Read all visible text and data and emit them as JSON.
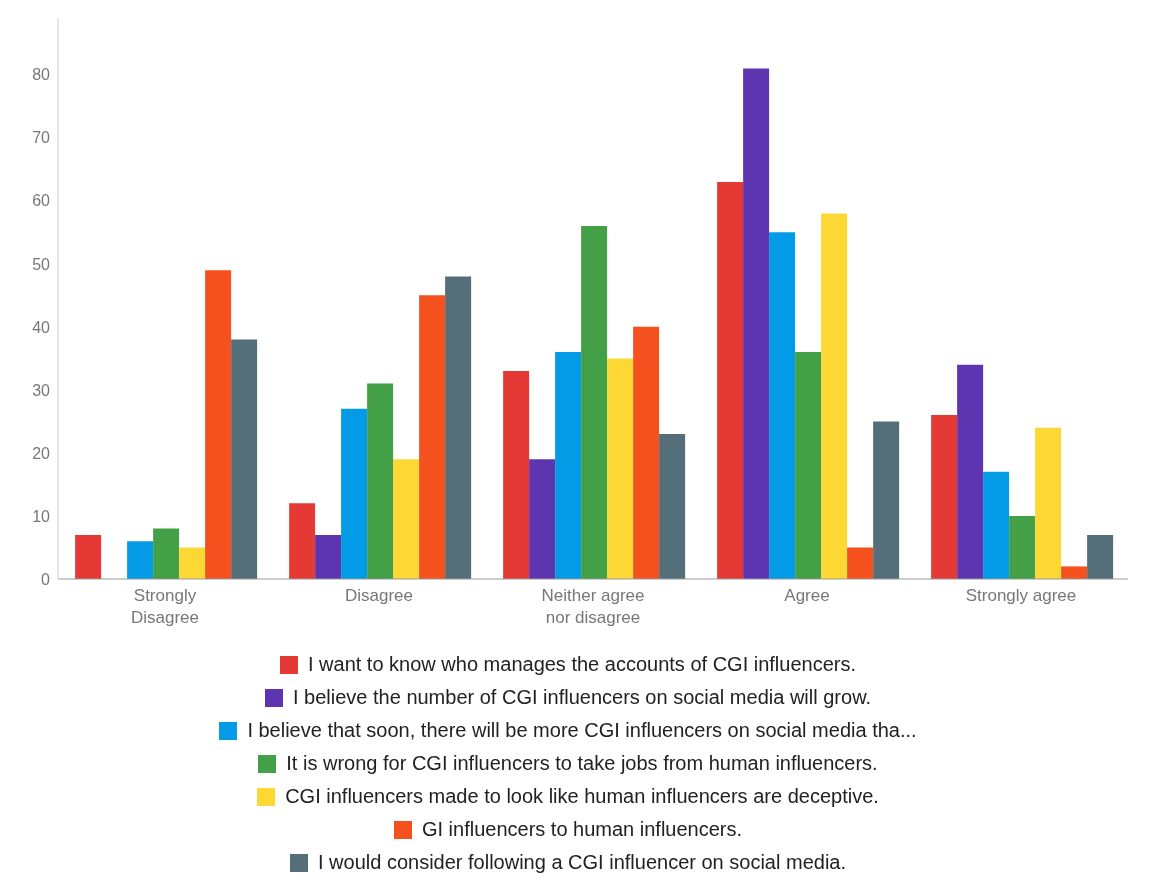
{
  "chart_data": {
    "type": "bar",
    "categories": [
      "Strongly Disagree",
      "Disagree",
      "Neither agree nor disagree",
      "Agree",
      "Strongly agree"
    ],
    "series": [
      {
        "name": "I want to know who manages the accounts of CGI influencers.",
        "color": "#e53935",
        "values": [
          7,
          12,
          33,
          63,
          26
        ]
      },
      {
        "name": "I believe the number of CGI influencers on social media will grow.",
        "color": "#5e35b1",
        "values": [
          0,
          7,
          19,
          81,
          34
        ]
      },
      {
        "name": "I believe that soon, there will be more CGI influencers on social media tha...",
        "color": "#039be5",
        "values": [
          6,
          27,
          36,
          55,
          17
        ]
      },
      {
        "name": "It is wrong for CGI influencers to take jobs from human influencers.",
        "color": "#43a047",
        "values": [
          8,
          31,
          56,
          36,
          10
        ]
      },
      {
        "name": "CGI influencers made to look like human influencers are deceptive.",
        "color": "#fdd835",
        "values": [
          5,
          19,
          35,
          58,
          24
        ]
      },
      {
        "name": "GI influencers to human influencers.",
        "color": "#f4511e",
        "values": [
          49,
          45,
          40,
          5,
          2
        ]
      },
      {
        "name": "I would consider following a CGI influencer on social media.",
        "color": "#546e7a",
        "values": [
          38,
          48,
          23,
          25,
          7
        ]
      }
    ],
    "ylim": [
      0,
      89
    ],
    "yticks": [
      0,
      10,
      20,
      30,
      40,
      50,
      60,
      70,
      80
    ],
    "legend": "bottom"
  }
}
